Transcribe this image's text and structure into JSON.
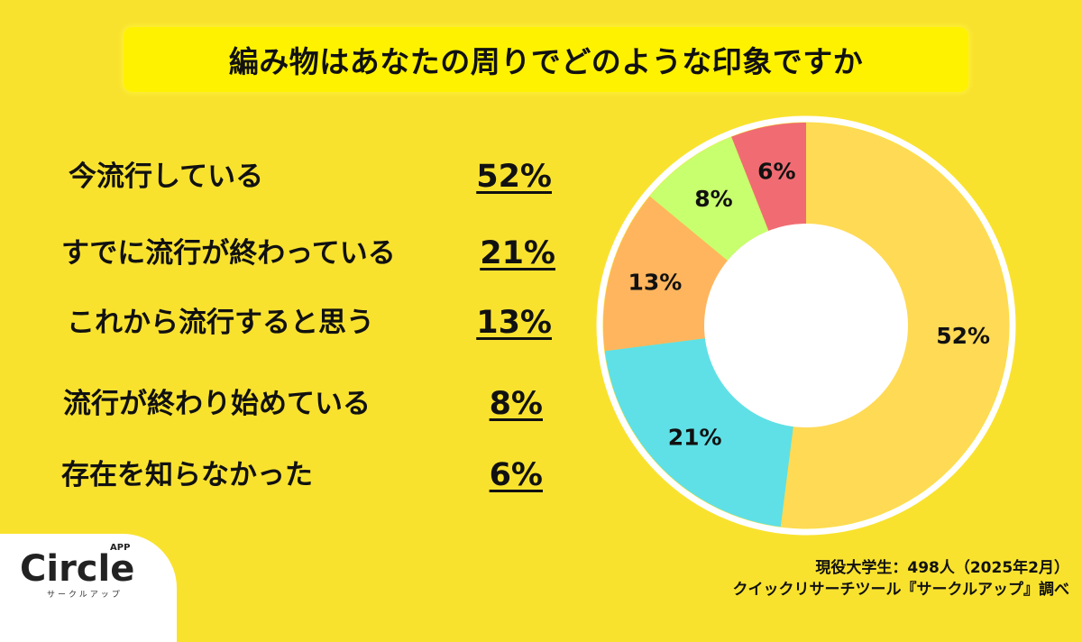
{
  "title": "編み物はあなたの周りでどのような印象ですか",
  "list": [
    {
      "label": "今流行している",
      "pct": "52%"
    },
    {
      "label": "すでに流行が終わっている",
      "pct": "21%"
    },
    {
      "label": "これから流行すると思う",
      "pct": "13%"
    },
    {
      "label": "流行が終わり始めている",
      "pct": "8%"
    },
    {
      "label": "存在を知らなかった",
      "pct": "6%"
    }
  ],
  "footer": {
    "line1": "現役大学生：498人（2025年2月）",
    "line2": "クイックリサーチツール『サークルアップ』調べ"
  },
  "logo": {
    "name": "Circle",
    "superscript": "APP",
    "kana": "サークルアップ"
  },
  "chart_data": {
    "type": "pie",
    "title": "編み物はあなたの周りでどのような印象ですか",
    "donut": true,
    "categories": [
      "今流行している",
      "すでに流行が終わっている",
      "これから流行すると思う",
      "流行が終わり始めている",
      "存在を知らなかった"
    ],
    "values": [
      52,
      21,
      13,
      8,
      6
    ],
    "labels": [
      "52%",
      "21%",
      "13%",
      "8%",
      "6%"
    ],
    "colors": [
      "#ffda55",
      "#5fe0e6",
      "#ffb55e",
      "#c8ff6e",
      "#f06c72"
    ],
    "start_angle": "12 o'clock, clockwise",
    "source": "現役大学生：498人（2025年2月）"
  }
}
